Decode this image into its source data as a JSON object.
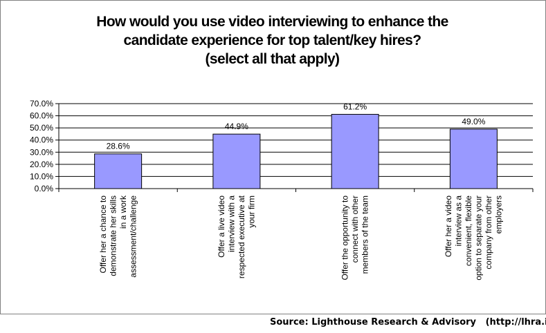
{
  "chart_data": {
    "type": "bar",
    "title_lines": [
      "How would you use video interviewing to enhance the",
      "candidate experience for top talent/key hires?",
      "(select all that apply)"
    ],
    "categories": [
      [
        "Offer her a chance to",
        "demonstrate her skills",
        "in a work",
        "assessment/challenge"
      ],
      [
        "Offer a live video",
        "interview with a",
        "respected executive at",
        "your firm"
      ],
      [
        "Offer the opportunity to",
        "connect with other",
        "members of the team"
      ],
      [
        "Offer her a video",
        "interview as a",
        "convenient, flexible",
        "option to separate your",
        "company from other",
        "employers"
      ]
    ],
    "values": [
      28.6,
      44.9,
      61.2,
      49.0
    ],
    "data_labels": [
      "28.6%",
      "44.9%",
      "61.2%",
      "49.0%"
    ],
    "y_ticks": [
      "0.0%",
      "10.0%",
      "20.0%",
      "30.0%",
      "40.0%",
      "50.0%",
      "60.0%",
      "70.0%"
    ],
    "ylim": [
      0,
      70
    ],
    "y_step": 10,
    "grid": true,
    "bar_color": "#9999ff",
    "bar_border_color": "#000000"
  },
  "source_note": "Source: Lighthouse Research & Advisory   (http://lhra.io)"
}
